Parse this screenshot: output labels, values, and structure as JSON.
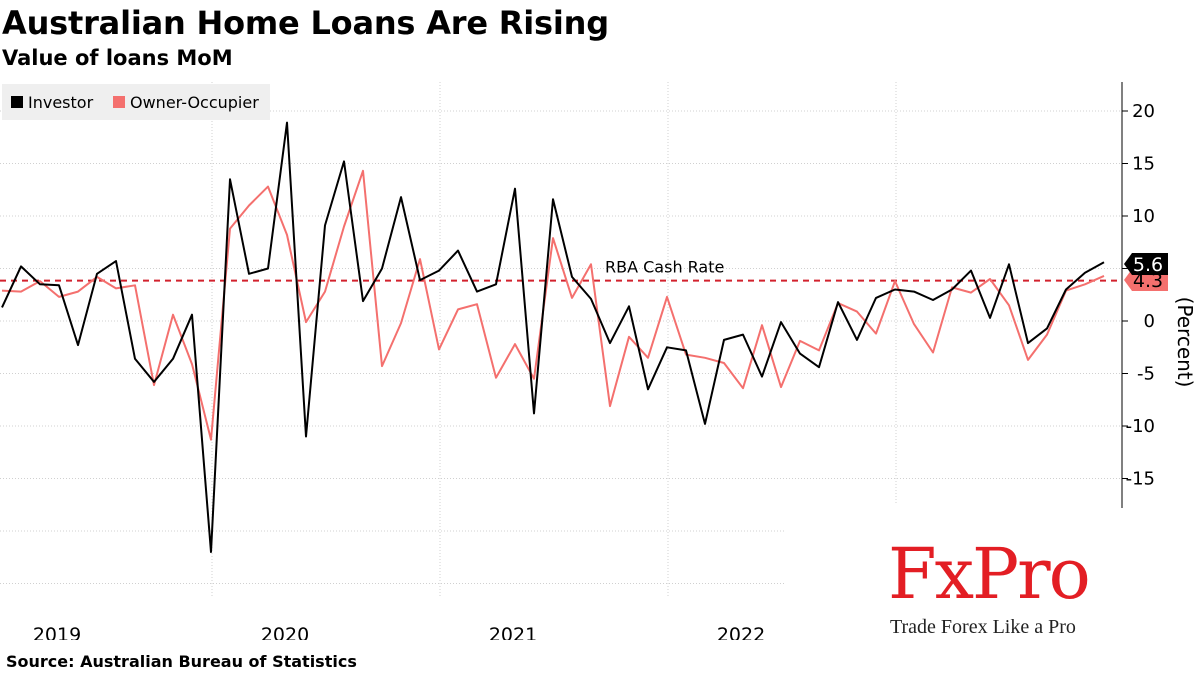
{
  "chart_data": {
    "type": "line",
    "title": "Australian Home Loans Are Rising",
    "subtitle": "Value of loans MoM",
    "ylabel": "(Percent)",
    "ylim": [
      -25,
      23
    ],
    "yticks": [
      20,
      15,
      10,
      5,
      0,
      -5,
      -10,
      -15
    ],
    "x_tick_labels": [
      "2019",
      "2020",
      "2021",
      "2022"
    ],
    "legend_position": "top-left",
    "grid": true,
    "x_start": "2019-01",
    "reference_line": {
      "label": "RBA Cash Rate",
      "value": 3.85,
      "color": "#d2222d"
    },
    "series": [
      {
        "name": "Investor",
        "color": "#000000",
        "values": [
          1.3,
          5.2,
          3.5,
          3.4,
          -2.3,
          4.5,
          5.7,
          -3.6,
          -5.8,
          -3.6,
          0.6,
          -22.0,
          13.5,
          4.5,
          5.0,
          18.9,
          -11.0,
          9.1,
          15.2,
          1.9,
          5.0,
          11.8,
          3.9,
          4.8,
          6.7,
          2.8,
          3.5,
          12.6,
          -8.8,
          11.6,
          4.2,
          2.1,
          -2.1,
          1.4,
          -6.5,
          -2.5,
          -2.8,
          -9.8,
          -1.8,
          -1.3,
          -5.3,
          -0.1,
          -3.1,
          -4.4,
          1.8,
          -1.8,
          2.2,
          3.0,
          2.8,
          2.0,
          3.0,
          4.8,
          0.3,
          5.4,
          -2.1,
          -0.7,
          3.0,
          4.6,
          5.6
        ]
      },
      {
        "name": "Owner-Occupier",
        "color": "#f4706e",
        "values": [
          2.9,
          2.8,
          3.8,
          2.3,
          2.8,
          4.2,
          3.1,
          3.4,
          -6.1,
          0.6,
          -4.1,
          -11.3,
          8.8,
          11.0,
          12.8,
          8.2,
          -0.1,
          2.8,
          9.0,
          14.3,
          -4.3,
          -0.2,
          5.9,
          -2.7,
          1.1,
          1.6,
          -5.4,
          -2.2,
          -5.5,
          7.9,
          2.2,
          5.4,
          -8.1,
          -1.5,
          -3.5,
          2.3,
          -3.2,
          -3.5,
          -4.0,
          -6.4,
          -0.4,
          -6.3,
          -1.9,
          -2.8,
          1.7,
          0.9,
          -1.2,
          3.8,
          -0.3,
          -3.0,
          3.2,
          2.7,
          4.0,
          1.5,
          -3.7,
          -1.3,
          2.9,
          3.5,
          4.3
        ]
      }
    ],
    "value_labels": [
      "5.6",
      "4.3"
    ]
  },
  "footer": {
    "source": "Source: Australian Bureau of Statistics"
  },
  "logo": {
    "text": "FxPro",
    "tagline": "Trade Forex Like a Pro"
  }
}
